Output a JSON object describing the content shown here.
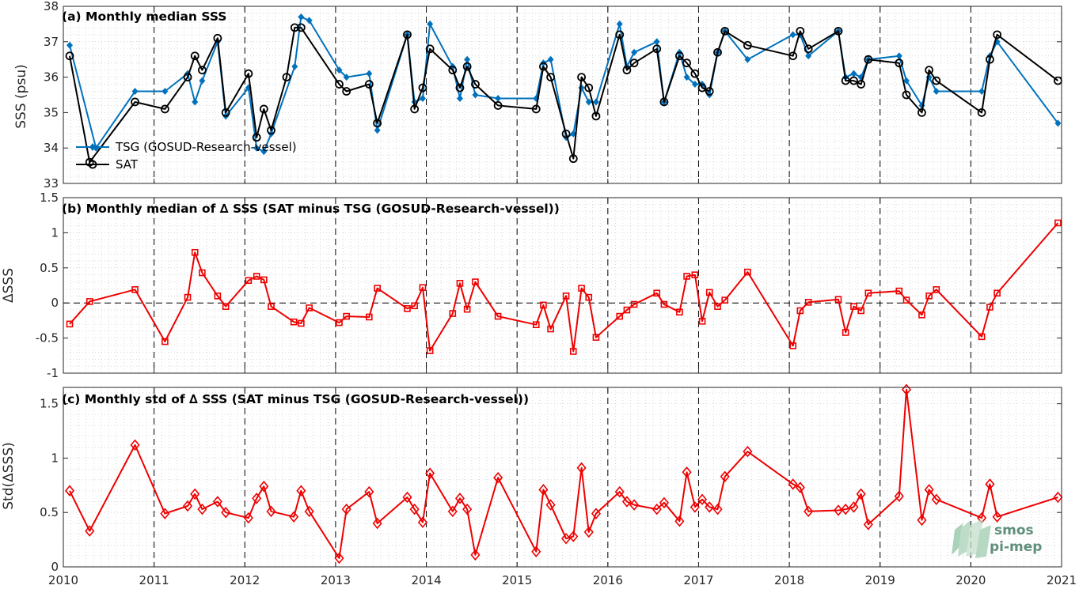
{
  "figure": {
    "logo_line1": "smos",
    "logo_line2": "pi-mep",
    "colors": {
      "tsg": "#0072bd",
      "sat": "#000000",
      "delta": "#ee0000",
      "logo": "#6fa88c"
    }
  },
  "chart_data": [
    {
      "type": "line",
      "title": "(a) Monthly median SSS",
      "ylabel": "SSS (psu)",
      "xlim": [
        2010,
        2021
      ],
      "ylim": [
        33,
        38
      ],
      "yticks": [
        33,
        34,
        35,
        36,
        37,
        38
      ],
      "xticks": [
        "2010",
        "2011",
        "2012",
        "2013",
        "2014",
        "2015",
        "2016",
        "2017",
        "2018",
        "2019",
        "2020",
        "2021"
      ],
      "legend_position": "lower-left",
      "grid": true,
      "series": [
        {
          "name": "TSG (GOSUD-Research-vessel)",
          "color": "#0072bd",
          "marker": "diamond",
          "x": [
            2010.07,
            2010.36,
            2010.79,
            2011.12,
            2011.37,
            2011.45,
            2011.53,
            2011.7,
            2011.79,
            2012.04,
            2012.13,
            2012.21,
            2012.29,
            2012.55,
            2012.62,
            2012.71,
            2013.04,
            2013.12,
            2013.37,
            2013.46,
            2013.79,
            2013.87,
            2013.96,
            2014.04,
            2014.29,
            2014.37,
            2014.45,
            2014.54,
            2014.79,
            2015.21,
            2015.29,
            2015.37,
            2015.54,
            2015.62,
            2015.71,
            2015.79,
            2015.87,
            2016.13,
            2016.21,
            2016.29,
            2016.54,
            2016.62,
            2016.79,
            2016.87,
            2016.96,
            2017.04,
            2017.12,
            2017.21,
            2017.29,
            2017.54,
            2018.04,
            2018.12,
            2018.21,
            2018.54,
            2018.62,
            2018.71,
            2018.79,
            2018.87,
            2019.21,
            2019.29,
            2019.46,
            2019.54,
            2019.62,
            2020.12,
            2020.21,
            2020.29,
            2020.96
          ],
          "values": [
            36.9,
            34.0,
            35.6,
            35.6,
            36.1,
            35.3,
            35.9,
            37.0,
            34.9,
            35.7,
            34.0,
            33.9,
            34.4,
            36.3,
            37.7,
            37.6,
            36.2,
            36.0,
            36.1,
            34.5,
            37.2,
            35.3,
            35.4,
            37.5,
            36.3,
            35.4,
            36.5,
            35.5,
            35.4,
            35.4,
            36.4,
            36.5,
            34.3,
            34.4,
            35.7,
            35.3,
            35.3,
            37.5,
            36.3,
            36.7,
            37.0,
            35.3,
            36.7,
            36.0,
            35.8,
            35.8,
            35.5,
            36.7,
            37.3,
            36.5,
            37.2,
            37.2,
            36.6,
            37.3,
            36.0,
            36.1,
            36.0,
            36.5,
            36.6,
            35.9,
            35.2,
            36.0,
            35.6,
            35.6,
            36.6,
            37.0,
            34.7
          ]
        },
        {
          "name": "SAT",
          "color": "#000000",
          "marker": "circle",
          "x": [
            2010.07,
            2010.29,
            2010.79,
            2011.12,
            2011.37,
            2011.45,
            2011.53,
            2011.7,
            2011.79,
            2012.04,
            2012.13,
            2012.21,
            2012.29,
            2012.46,
            2012.55,
            2012.62,
            2013.04,
            2013.12,
            2013.37,
            2013.46,
            2013.79,
            2013.87,
            2013.96,
            2014.04,
            2014.29,
            2014.37,
            2014.45,
            2014.54,
            2014.79,
            2015.21,
            2015.29,
            2015.37,
            2015.54,
            2015.62,
            2015.71,
            2015.79,
            2015.87,
            2016.13,
            2016.21,
            2016.29,
            2016.54,
            2016.62,
            2016.79,
            2016.87,
            2016.96,
            2017.04,
            2017.12,
            2017.21,
            2017.29,
            2017.54,
            2018.04,
            2018.12,
            2018.21,
            2018.54,
            2018.62,
            2018.71,
            2018.79,
            2018.87,
            2019.21,
            2019.29,
            2019.46,
            2019.54,
            2019.62,
            2020.12,
            2020.21,
            2020.29,
            2020.96
          ],
          "values": [
            36.6,
            33.6,
            35.3,
            35.1,
            36.0,
            36.6,
            36.2,
            37.1,
            35.0,
            36.1,
            34.3,
            35.1,
            34.5,
            36.0,
            37.4,
            37.4,
            35.8,
            35.6,
            35.8,
            34.7,
            37.2,
            35.1,
            35.7,
            36.8,
            36.2,
            35.7,
            36.3,
            35.8,
            35.2,
            35.1,
            36.3,
            36.0,
            34.4,
            33.7,
            36.0,
            35.7,
            34.9,
            37.2,
            36.2,
            36.4,
            36.8,
            35.3,
            36.6,
            36.4,
            36.1,
            35.7,
            35.6,
            36.7,
            37.3,
            36.9,
            36.6,
            37.3,
            36.8,
            37.3,
            35.9,
            35.9,
            35.8,
            36.5,
            36.4,
            35.5,
            35.0,
            36.2,
            35.9,
            35.0,
            36.5,
            37.2,
            35.9
          ]
        }
      ]
    },
    {
      "type": "line",
      "title": "(b) Monthly median of ∆ SSS (SAT minus TSG (GOSUD-Research-vessel))",
      "ylabel": "ΔSSS",
      "xlim": [
        2010,
        2021
      ],
      "ylim": [
        -1,
        1.5
      ],
      "yticks": [
        -1,
        -0.5,
        0,
        0.5,
        1,
        1.5
      ],
      "ytick_labels": [
        "-1",
        "-0.5",
        "0",
        "0.5",
        "1",
        "1.5"
      ],
      "xticks": [
        "2010",
        "2011",
        "2012",
        "2013",
        "2014",
        "2015",
        "2016",
        "2017",
        "2018",
        "2019",
        "2020",
        "2021"
      ],
      "zero_line": true,
      "grid": true,
      "series": [
        {
          "color": "#ee0000",
          "marker": "square",
          "x": [
            2010.07,
            2010.29,
            2010.79,
            2011.12,
            2011.37,
            2011.45,
            2011.53,
            2011.7,
            2011.79,
            2012.04,
            2012.13,
            2012.21,
            2012.29,
            2012.54,
            2012.62,
            2012.71,
            2013.04,
            2013.12,
            2013.37,
            2013.46,
            2013.79,
            2013.87,
            2013.96,
            2014.04,
            2014.29,
            2014.37,
            2014.45,
            2014.54,
            2014.79,
            2015.21,
            2015.29,
            2015.37,
            2015.54,
            2015.62,
            2015.71,
            2015.79,
            2015.87,
            2016.13,
            2016.21,
            2016.29,
            2016.54,
            2016.62,
            2016.79,
            2016.87,
            2016.96,
            2017.04,
            2017.12,
            2017.21,
            2017.29,
            2017.54,
            2018.04,
            2018.12,
            2018.21,
            2018.54,
            2018.62,
            2018.71,
            2018.79,
            2018.87,
            2019.21,
            2019.29,
            2019.46,
            2019.54,
            2019.62,
            2020.12,
            2020.21,
            2020.29,
            2020.96
          ],
          "values": [
            -0.3,
            0.02,
            0.19,
            -0.55,
            0.08,
            0.72,
            0.43,
            0.1,
            -0.05,
            0.32,
            0.38,
            0.33,
            -0.05,
            -0.27,
            -0.29,
            -0.07,
            -0.28,
            -0.19,
            -0.2,
            0.21,
            -0.08,
            -0.04,
            0.22,
            -0.68,
            -0.15,
            0.28,
            -0.09,
            0.3,
            -0.19,
            -0.31,
            -0.03,
            -0.37,
            0.1,
            -0.69,
            0.21,
            0.08,
            -0.49,
            -0.19,
            -0.1,
            -0.02,
            0.14,
            -0.02,
            -0.13,
            0.38,
            0.4,
            -0.26,
            0.15,
            -0.05,
            0.04,
            0.44,
            -0.61,
            -0.11,
            0.01,
            0.05,
            -0.42,
            -0.05,
            -0.11,
            0.14,
            0.17,
            0.04,
            -0.17,
            0.1,
            0.19,
            -0.48,
            -0.06,
            0.14,
            1.14
          ]
        }
      ]
    },
    {
      "type": "line",
      "title": "(c) Monthly std of ∆ SSS (SAT minus TSG (GOSUD-Research-vessel))",
      "ylabel": "Std(ΔSSS)",
      "xlim": [
        2010,
        2021
      ],
      "ylim": [
        0,
        1.65
      ],
      "yticks": [
        0,
        0.5,
        1,
        1.5
      ],
      "ytick_labels": [
        "0",
        "0.5",
        "1",
        "1.5"
      ],
      "xticks": [
        "2010",
        "2011",
        "2012",
        "2013",
        "2014",
        "2015",
        "2016",
        "2017",
        "2018",
        "2019",
        "2020",
        "2021"
      ],
      "grid": true,
      "series": [
        {
          "color": "#ee0000",
          "marker": "diamond-open",
          "x": [
            2010.07,
            2010.29,
            2010.79,
            2011.12,
            2011.37,
            2011.45,
            2011.53,
            2011.7,
            2011.79,
            2012.04,
            2012.13,
            2012.21,
            2012.29,
            2012.54,
            2012.62,
            2012.71,
            2013.04,
            2013.12,
            2013.37,
            2013.46,
            2013.79,
            2013.87,
            2013.96,
            2014.04,
            2014.29,
            2014.37,
            2014.45,
            2014.54,
            2014.79,
            2015.21,
            2015.29,
            2015.37,
            2015.54,
            2015.62,
            2015.71,
            2015.79,
            2015.87,
            2016.13,
            2016.21,
            2016.29,
            2016.54,
            2016.62,
            2016.79,
            2016.87,
            2016.96,
            2017.04,
            2017.12,
            2017.21,
            2017.29,
            2017.54,
            2018.04,
            2018.12,
            2018.21,
            2018.54,
            2018.62,
            2018.71,
            2018.79,
            2018.87,
            2019.21,
            2019.29,
            2019.46,
            2019.54,
            2019.62,
            2020.12,
            2020.21,
            2020.29,
            2020.96
          ],
          "values": [
            0.7,
            0.33,
            1.12,
            0.49,
            0.56,
            0.67,
            0.53,
            0.6,
            0.5,
            0.45,
            0.63,
            0.74,
            0.51,
            0.46,
            0.7,
            0.51,
            0.08,
            0.53,
            0.69,
            0.4,
            0.64,
            0.53,
            0.41,
            0.86,
            0.51,
            0.63,
            0.53,
            0.11,
            0.82,
            0.14,
            0.71,
            0.57,
            0.26,
            0.28,
            0.91,
            0.32,
            0.49,
            0.69,
            0.6,
            0.57,
            0.53,
            0.59,
            0.42,
            0.87,
            0.55,
            0.62,
            0.55,
            0.53,
            0.83,
            1.06,
            0.76,
            0.73,
            0.51,
            0.52,
            0.53,
            0.55,
            0.67,
            0.39,
            0.65,
            1.63,
            0.43,
            0.71,
            0.62,
            0.45,
            0.76,
            0.46,
            0.64
          ]
        }
      ]
    }
  ]
}
